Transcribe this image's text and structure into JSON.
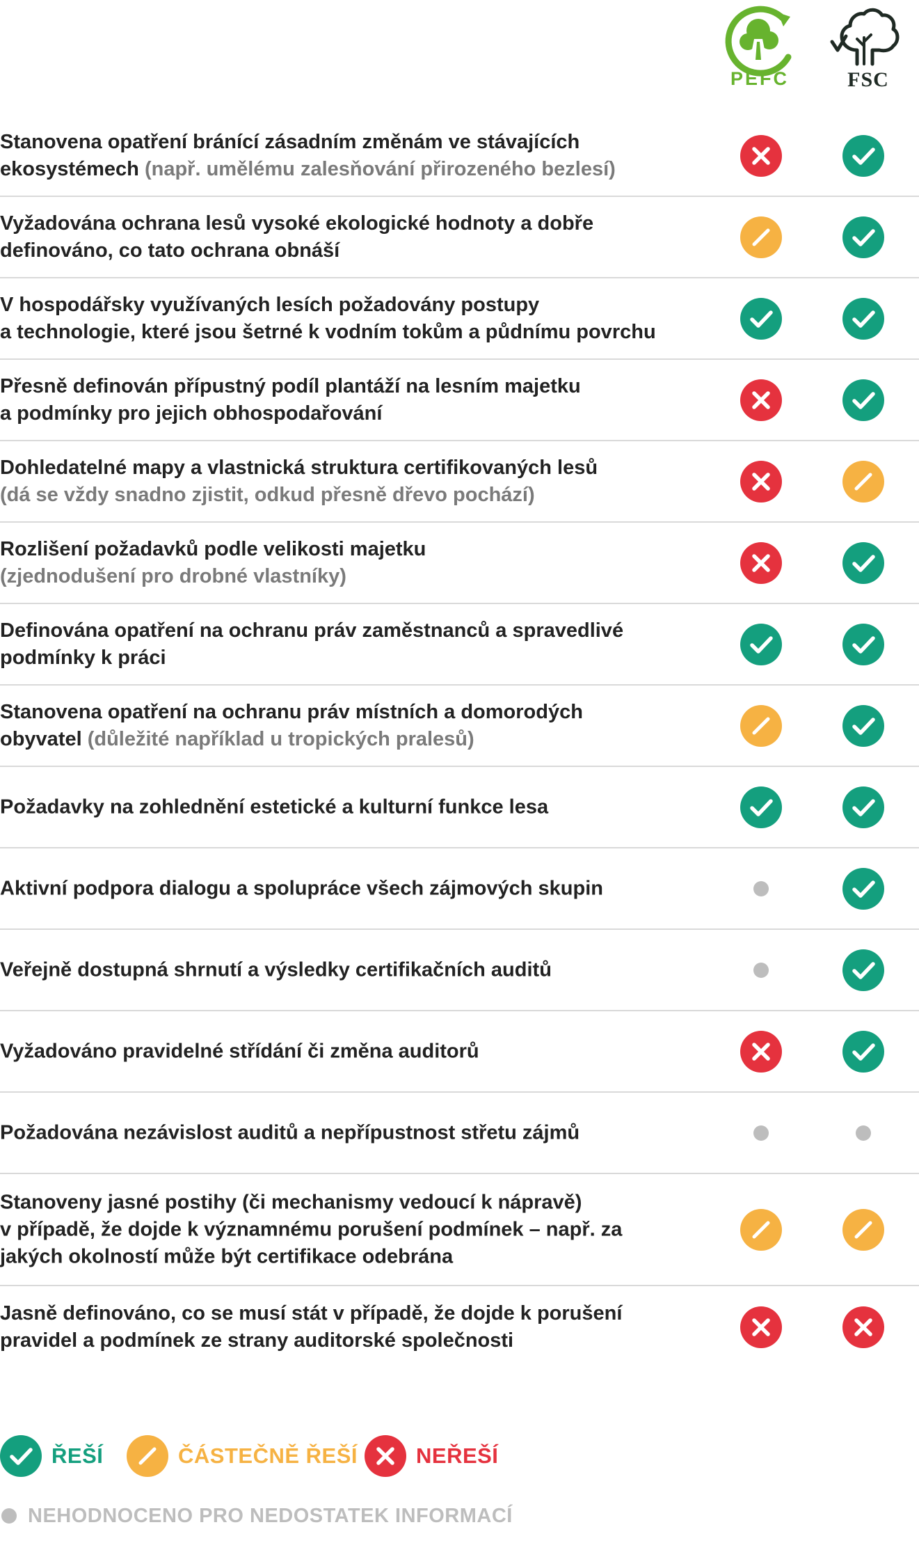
{
  "header": {
    "pefc_logo_text": "PEFC",
    "fsc_logo_text": "FSC"
  },
  "colors": {
    "yes": "#149f7e",
    "partial": "#f6b243",
    "no": "#e5323e",
    "not_rated": "#bdbdbd",
    "pefc_green": "#67b32e",
    "fsc_dark": "#1f2a24"
  },
  "rows": [
    {
      "lines": [
        "Stanovena opatření bránící zásadním změnám ve stávajících"
      ],
      "last_text": "ekosystémech ",
      "note": "(např. umělému zalesňování přirozeného bezlesí)",
      "pefc": "no",
      "fsc": "yes"
    },
    {
      "lines": [
        "Vyžadována ochrana lesů vysoké ekologické hodnoty a dobře"
      ],
      "last_text": "definováno, co tato ochrana obnáší",
      "note": "",
      "pefc": "partial",
      "fsc": "yes"
    },
    {
      "lines": [
        "V hospodářsky využívaných lesích požadovány postupy"
      ],
      "last_text": "a technologie, které jsou šetrné k vodním tokům a půdnímu povrchu",
      "note": "",
      "pefc": "yes",
      "fsc": "yes"
    },
    {
      "lines": [
        "Přesně definován přípustný podíl plantáží na lesním majetku"
      ],
      "last_text": "a podmínky pro jejich obhospodařování",
      "note": "",
      "pefc": "no",
      "fsc": "yes"
    },
    {
      "lines": [
        "Dohledatelné mapy a vlastnická struktura certifikovaných lesů"
      ],
      "last_text": "",
      "note": "(dá se vždy snadno zjistit, odkud přesně dřevo pochází)",
      "pefc": "no",
      "fsc": "partial"
    },
    {
      "lines": [
        "Rozlišení požadavků podle velikosti majetku"
      ],
      "last_text": "",
      "note": "(zjednodušení pro drobné vlastníky)",
      "pefc": "no",
      "fsc": "yes"
    },
    {
      "lines": [
        "Definována opatření na ochranu práv zaměstnanců a spravedlivé"
      ],
      "last_text": "podmínky k práci",
      "note": "",
      "pefc": "yes",
      "fsc": "yes"
    },
    {
      "lines": [
        "Stanovena opatření na ochranu práv místních a domorodých"
      ],
      "last_text": "obyvatel ",
      "note": "(důležité například u tropických pralesů)",
      "pefc": "partial",
      "fsc": "yes"
    },
    {
      "lines": [],
      "last_text": "Požadavky na zohlednění estetické a kulturní funkce lesa",
      "note": "",
      "pefc": "yes",
      "fsc": "yes"
    },
    {
      "lines": [],
      "last_text": "Aktivní podpora dialogu a spolupráce všech zájmových skupin",
      "note": "",
      "pefc": "none",
      "fsc": "yes"
    },
    {
      "lines": [],
      "last_text": "Veřejně dostupná shrnutí a výsledky certifikačních auditů",
      "note": "",
      "pefc": "none",
      "fsc": "yes"
    },
    {
      "lines": [],
      "last_text": "Vyžadováno pravidelné střídání či změna auditorů",
      "note": "",
      "pefc": "no",
      "fsc": "yes"
    },
    {
      "lines": [],
      "last_text": "Požadována nezávislost auditů a nepřípustnost střetu zájmů",
      "note": "",
      "pefc": "none",
      "fsc": "none"
    },
    {
      "lines": [
        "Stanoveny jasné postihy (či mechanismy vedoucí k nápravě)",
        "v případě, že dojde k významnému porušení podmínek – např. za"
      ],
      "last_text": "jakých okolností může být certifikace odebrána",
      "note": "",
      "pefc": "partial",
      "fsc": "partial"
    },
    {
      "lines": [
        "Jasně definováno, co se musí stát v případě, že dojde k porušení"
      ],
      "last_text": "pravidel a podmínek ze strany auditorské společnosti",
      "note": "",
      "pefc": "no",
      "fsc": "no"
    }
  ],
  "legend": {
    "yes_label": "ŘEŠÍ",
    "partial_label": "ČÁSTEČNĚ ŘEŠÍ",
    "no_label": "NEŘEŠÍ",
    "not_rated_label": "NEHODNOCENO PRO NEDOSTATEK INFORMACÍ"
  }
}
